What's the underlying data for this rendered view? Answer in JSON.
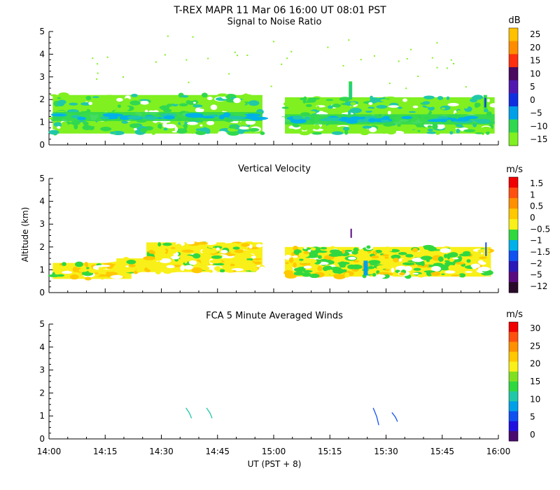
{
  "header": {
    "title": "T-REX   MAPR 11 Mar 06   16:00 UT   08:01   PST"
  },
  "x_axis": {
    "label": "UT  (PST + 8)",
    "ticks": [
      "14:00",
      "14:15",
      "14:30",
      "14:45",
      "15:00",
      "15:15",
      "15:30",
      "15:45",
      "16:00"
    ],
    "range_minutes": [
      0,
      120
    ]
  },
  "y_axis": {
    "label": "Altitude (km)",
    "ticks": [
      "0",
      "1",
      "2",
      "3",
      "4",
      "5"
    ],
    "range": [
      0,
      5
    ]
  },
  "colors": {
    "palette": [
      "#3a0a3a",
      "#5a0a80",
      "#2a18b8",
      "#1040e0",
      "#00a0e8",
      "#20c8a8",
      "#30d840",
      "#80f020",
      "#d8f018",
      "#f8e818",
      "#ffc000",
      "#ff8c00",
      "#ff5010",
      "#f00000"
    ]
  },
  "chart_data": [
    {
      "type": "heatmap",
      "title": "Signal to Noise Ratio",
      "unit": "dB",
      "colorbar": {
        "labels": [
          "25",
          "20",
          "15",
          "10",
          "5",
          "0",
          "−5",
          "−10",
          "−15"
        ],
        "colors": [
          "#ffc000",
          "#ff8c00",
          "#ff3010",
          "#4a0a60",
          "#5018b0",
          "#1030e0",
          "#00a0e8",
          "#30d850",
          "#80f020"
        ]
      },
      "ylim": [
        0,
        5
      ],
      "xlim_minutes": [
        0,
        120
      ],
      "segments": [
        {
          "name": "segment-1",
          "start_min": 1,
          "end_min": 57,
          "alt_bottom": 0.5,
          "alt_top": 2.2,
          "dominant_db": -14
        },
        {
          "name": "segment-2",
          "start_min": 63,
          "end_min": 119,
          "alt_bottom": 0.5,
          "alt_top": 2.1,
          "dominant_db": -14
        }
      ],
      "bands": [
        {
          "start_min": 1,
          "end_min": 57,
          "alt_bottom": 1.05,
          "alt_top": 1.45,
          "db": -8
        },
        {
          "start_min": 63,
          "end_min": 119,
          "alt_bottom": 0.9,
          "alt_top": 1.35,
          "db": -8
        }
      ],
      "plumes": [
        {
          "center_min": 80.5,
          "alt_bottom": 2.0,
          "alt_top": 2.8,
          "db": -12
        },
        {
          "center_min": 116.5,
          "alt_bottom": 1.6,
          "alt_top": 2.2,
          "db": 0
        }
      ]
    },
    {
      "type": "heatmap",
      "title": "Vertical Velocity",
      "unit": "m/s",
      "colorbar": {
        "labels": [
          "1.5",
          "1",
          "0.5",
          "0",
          "−0.5",
          "−1",
          "−1.5",
          "−2",
          "−5",
          "−12"
        ],
        "colors": [
          "#f00000",
          "#ff5010",
          "#ff9000",
          "#ffc800",
          "#f8f018",
          "#30d840",
          "#00b0e8",
          "#1050f0",
          "#2a18b8",
          "#5a0a80",
          "#2a0a2a"
        ]
      },
      "ylim": [
        0,
        5
      ],
      "xlim_minutes": [
        0,
        120
      ],
      "segments": [
        {
          "name": "segment-1",
          "start_min": 1,
          "end_min": 57,
          "alt_bottom": 0.6,
          "alt_top": 2.2,
          "dominant_ms": 0.2
        },
        {
          "name": "segment-2",
          "start_min": 63,
          "end_min": 118,
          "alt_bottom": 0.7,
          "alt_top": 2.0,
          "dominant_ms": 0.0
        }
      ]
    },
    {
      "type": "barbs",
      "title": "FCA 5 Minute Averaged Winds",
      "unit": "m/s",
      "colorbar": {
        "labels": [
          "30",
          "25",
          "20",
          "15",
          "10",
          "5",
          "0"
        ],
        "colors": [
          "#f00000",
          "#ff5010",
          "#ff9000",
          "#ffc800",
          "#f8f018",
          "#80e020",
          "#30d840",
          "#20c8a8",
          "#00a0e8",
          "#1050f0",
          "#2010e0",
          "#4a0a70"
        ]
      },
      "ylim": [
        0,
        5
      ],
      "xlim_minutes": [
        0,
        120
      ],
      "barbs": [
        {
          "time_min": 37.5,
          "alt_top": 1.35,
          "alt_bottom": 0.9,
          "speed": 9
        },
        {
          "time_min": 43.0,
          "alt_top": 1.35,
          "alt_bottom": 0.9,
          "speed": 10
        },
        {
          "time_min": 87.5,
          "alt_top": 1.35,
          "alt_bottom": 0.6,
          "speed": 5
        },
        {
          "time_min": 92.5,
          "alt_top": 1.15,
          "alt_bottom": 0.75,
          "speed": 6
        }
      ]
    }
  ]
}
